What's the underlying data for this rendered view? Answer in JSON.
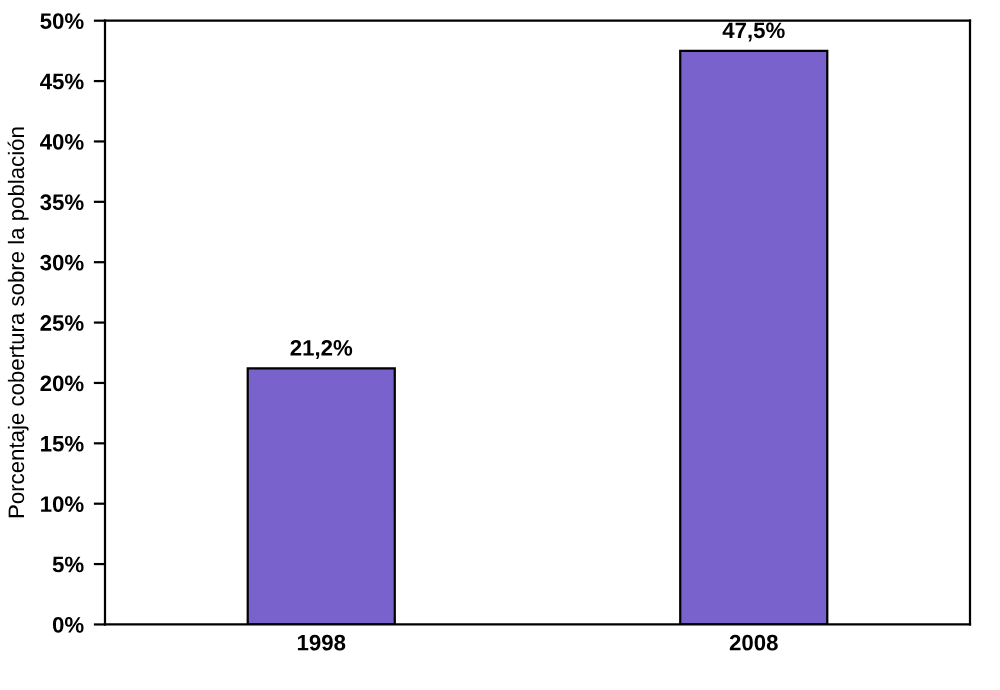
{
  "chart_data": {
    "type": "bar",
    "ylabel": "Porcentaje cobertura sobre la población",
    "categories": [
      "1998",
      "2008"
    ],
    "values": [
      21.2,
      47.5
    ],
    "value_labels": [
      "21,2%",
      "47,5%"
    ],
    "color": "#7a62cc",
    "ylim": [
      0,
      50
    ],
    "yticks": [
      {
        "value": 0,
        "label": "0%"
      },
      {
        "value": 5,
        "label": "5%"
      },
      {
        "value": 10,
        "label": "10%"
      },
      {
        "value": 15,
        "label": "15%"
      },
      {
        "value": 20,
        "label": "20%"
      },
      {
        "value": 25,
        "label": "25%"
      },
      {
        "value": 30,
        "label": "30%"
      },
      {
        "value": 35,
        "label": "35%"
      },
      {
        "value": 40,
        "label": "40%"
      },
      {
        "value": 45,
        "label": "45%"
      },
      {
        "value": 50,
        "label": "50%"
      }
    ],
    "grid": false,
    "legend": false
  }
}
